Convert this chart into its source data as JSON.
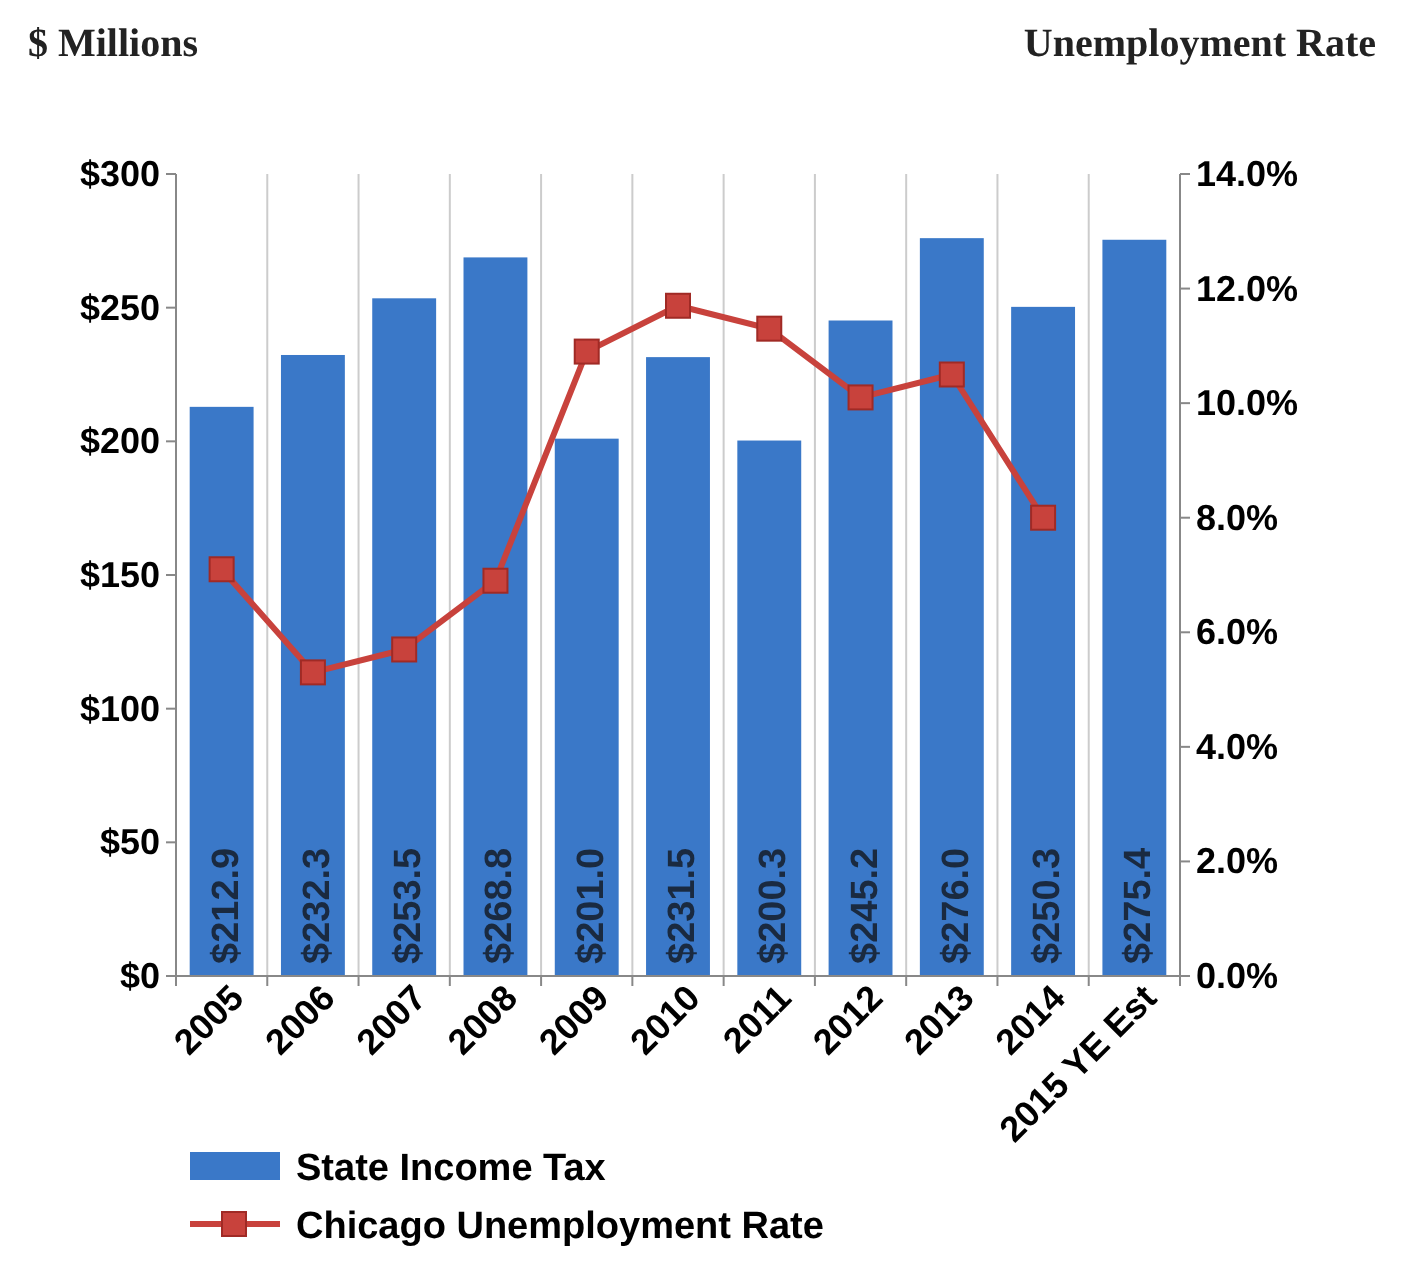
{
  "chart_data": {
    "type": "bar",
    "ylabel": "$ Millions",
    "y2label": "Unemployment Rate",
    "categories": [
      "2005",
      "2006",
      "2007",
      "2008",
      "2009",
      "2010",
      "2011",
      "2012",
      "2013",
      "2014",
      "2015 YE Est"
    ],
    "series": [
      {
        "name": "State Income Tax",
        "color": "#3a78c8",
        "values": [
          212.9,
          232.3,
          253.5,
          268.8,
          201.0,
          231.5,
          200.3,
          245.2,
          276.0,
          250.3,
          275.4
        ],
        "value_labels": [
          "$212.9",
          "$232.3",
          "$253.5",
          "$268.8",
          "$201.0",
          "$231.5",
          "$200.3",
          "$245.2",
          "$276.0",
          "$250.3",
          "$275.4"
        ]
      },
      {
        "name": "Chicago Unemployment Rate",
        "type": "line",
        "axis": "y2",
        "color": "#c8423c",
        "marker": "square",
        "values": [
          7.1,
          5.3,
          5.7,
          6.9,
          10.9,
          11.7,
          11.3,
          10.1,
          10.5,
          8.0,
          null
        ]
      }
    ],
    "ylim": [
      0,
      300
    ],
    "yticks": [
      {
        "value": 0,
        "label": "$0"
      },
      {
        "value": 50,
        "label": "$50"
      },
      {
        "value": 100,
        "label": "$100"
      },
      {
        "value": 150,
        "label": "$150"
      },
      {
        "value": 200,
        "label": "$200"
      },
      {
        "value": 250,
        "label": "$250"
      },
      {
        "value": 300,
        "label": "$300"
      }
    ],
    "y2lim": [
      0,
      14
    ],
    "y2ticks": [
      {
        "value": 0,
        "label": "0.0%"
      },
      {
        "value": 2,
        "label": "2.0%"
      },
      {
        "value": 4,
        "label": "4.0%"
      },
      {
        "value": 6,
        "label": "6.0%"
      },
      {
        "value": 8,
        "label": "8.0%"
      },
      {
        "value": 10,
        "label": "10.0%"
      },
      {
        "value": 12,
        "label": "12.0%"
      },
      {
        "value": 14,
        "label": "14.0%"
      }
    ],
    "grid": "x",
    "legend": "bottom"
  }
}
